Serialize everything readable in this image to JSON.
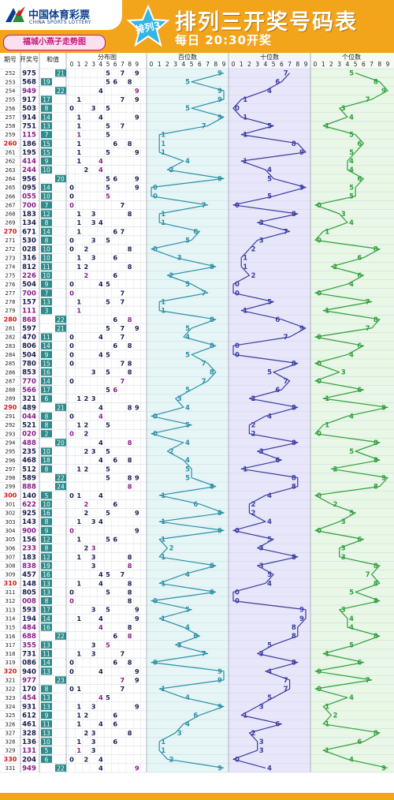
{
  "header": {
    "logo_text": "中国体育彩票",
    "logo_sub": "CHINA SPORTS LOTTERY",
    "slogan": "福城小燕子走势图",
    "badge": "排列3",
    "title": "排列三开奖号码表",
    "draw_time": "每日  20:30开奖"
  },
  "columns": {
    "period": "期号",
    "number": "开奖号",
    "sum": "和值",
    "dist": "分布图",
    "hundreds": "百位数",
    "tens": "十位数",
    "units": "个位数"
  },
  "digits": [
    "0",
    "1",
    "2",
    "3",
    "4",
    "5",
    "6",
    "7",
    "8",
    "9"
  ],
  "colors": {
    "header": "#f2a41a",
    "sum_box": "#2e8b8b",
    "hundreds_line": "#2b8fa6",
    "tens_line": "#3a3aa0",
    "units_line": "#2e9e3a",
    "hundreds_bg": "#e6f6f7",
    "tens_bg": "#e8e6fa",
    "units_bg": "#e8f7e6",
    "highlight_red": "#d11a1a",
    "highlight_purple": "#8a1a8a"
  },
  "chart_data": {
    "type": "table",
    "periods": [
      "252",
      "253",
      "254",
      "255",
      "256",
      "257",
      "258",
      "259",
      "260",
      "261",
      "262",
      "263",
      "264",
      "265",
      "266",
      "267",
      "268",
      "269",
      "270",
      "271",
      "272",
      "273",
      "274",
      "275",
      "276",
      "277",
      "278",
      "279",
      "280",
      "281",
      "282",
      "283",
      "284",
      "285",
      "286",
      "287",
      "288",
      "289",
      "290",
      "291",
      "292",
      "293",
      "294",
      "295",
      "296",
      "297",
      "298",
      "299",
      "300",
      "301",
      "302",
      "303",
      "304",
      "305",
      "306",
      "307",
      "308",
      "309",
      "310",
      "311",
      "312",
      "313",
      "314",
      "315",
      "316",
      "317",
      "318",
      "319",
      "320",
      "321",
      "322",
      "323",
      "324",
      "325",
      "326",
      "327",
      "328",
      "329",
      "330",
      "331"
    ],
    "numbers": [
      "975",
      "568",
      "949",
      "917",
      "503",
      "914",
      "751",
      "115",
      "186",
      "195",
      "414",
      "244",
      "956",
      "095",
      "055",
      "700",
      "183",
      "134",
      "671",
      "530",
      "028",
      "316",
      "812",
      "226",
      "504",
      "700",
      "157",
      "111",
      "868",
      "597",
      "470",
      "806",
      "504",
      "780",
      "853",
      "770",
      "566",
      "321",
      "489",
      "044",
      "521",
      "020",
      "488",
      "235",
      "468",
      "512",
      "589",
      "888",
      "140",
      "622",
      "925",
      "143",
      "900",
      "156",
      "233",
      "183",
      "838",
      "457",
      "148",
      "805",
      "008",
      "593",
      "194",
      "484",
      "688",
      "355",
      "731",
      "086",
      "940",
      "977",
      "170",
      "454",
      "931",
      "612",
      "461",
      "328",
      "136",
      "131",
      "204",
      "949"
    ],
    "sums": [
      "21",
      "19",
      "22",
      "17",
      "8",
      "14",
      "13",
      "7",
      "15",
      "15",
      "9",
      "10",
      "20",
      "14",
      "10",
      "7",
      "12",
      "8",
      "14",
      "8",
      "10",
      "10",
      "11",
      "10",
      "9",
      "7",
      "13",
      "3",
      "22",
      "21",
      "11",
      "14",
      "9",
      "15",
      "16",
      "14",
      "17",
      "6",
      "21",
      "8",
      "8",
      "2",
      "20",
      "10",
      "18",
      "8",
      "22",
      "24",
      "5",
      "10",
      "16",
      "8",
      "9",
      "12",
      "8",
      "12",
      "19",
      "16",
      "13",
      "13",
      "8",
      "17",
      "14",
      "16",
      "22",
      "13",
      "11",
      "14",
      "13",
      "23",
      "8",
      "13",
      "13",
      "9",
      "11",
      "13",
      "10",
      "5",
      "6",
      "22"
    ],
    "highlight_periods": [
      "260",
      "270",
      "280",
      "290",
      "300",
      "310",
      "320",
      "330"
    ],
    "series": [
      {
        "name": "百位数",
        "values": [
          9,
          5,
          9,
          9,
          5,
          9,
          7,
          1,
          1,
          1,
          4,
          2,
          9,
          0,
          0,
          7,
          1,
          1,
          6,
          5,
          0,
          3,
          8,
          2,
          5,
          7,
          1,
          1,
          8,
          5,
          4,
          8,
          5,
          7,
          8,
          7,
          5,
          3,
          4,
          0,
          5,
          0,
          4,
          2,
          4,
          5,
          5,
          8,
          1,
          6,
          9,
          1,
          9,
          1,
          2,
          1,
          8,
          4,
          1,
          8,
          0,
          5,
          1,
          4,
          6,
          3,
          7,
          0,
          9,
          9,
          1,
          4,
          9,
          6,
          4,
          3,
          1,
          1,
          2,
          9
        ]
      },
      {
        "name": "十位数",
        "values": [
          7,
          6,
          4,
          1,
          0,
          1,
          5,
          1,
          8,
          9,
          1,
          4,
          5,
          9,
          5,
          0,
          8,
          3,
          7,
          3,
          2,
          1,
          1,
          2,
          0,
          0,
          5,
          1,
          6,
          9,
          7,
          0,
          0,
          8,
          5,
          7,
          6,
          2,
          8,
          4,
          2,
          2,
          8,
          3,
          6,
          1,
          8,
          8,
          4,
          2,
          2,
          4,
          0,
          5,
          3,
          8,
          3,
          5,
          4,
          0,
          0,
          9,
          9,
          8,
          8,
          5,
          3,
          8,
          4,
          7,
          7,
          5,
          3,
          1,
          6,
          2,
          3,
          3,
          0,
          4
        ]
      },
      {
        "name": "个位数",
        "values": [
          5,
          8,
          9,
          7,
          3,
          4,
          1,
          5,
          6,
          5,
          4,
          4,
          6,
          5,
          5,
          0,
          3,
          4,
          1,
          0,
          8,
          6,
          2,
          6,
          4,
          0,
          7,
          1,
          8,
          7,
          0,
          6,
          4,
          0,
          3,
          0,
          6,
          1,
          9,
          4,
          1,
          0,
          8,
          5,
          8,
          2,
          9,
          8,
          0,
          2,
          5,
          3,
          0,
          6,
          3,
          3,
          8,
          7,
          8,
          5,
          8,
          3,
          4,
          4,
          8,
          5,
          1,
          6,
          0,
          7,
          0,
          4,
          1,
          2,
          1,
          8,
          6,
          1,
          4,
          9
        ]
      }
    ]
  }
}
